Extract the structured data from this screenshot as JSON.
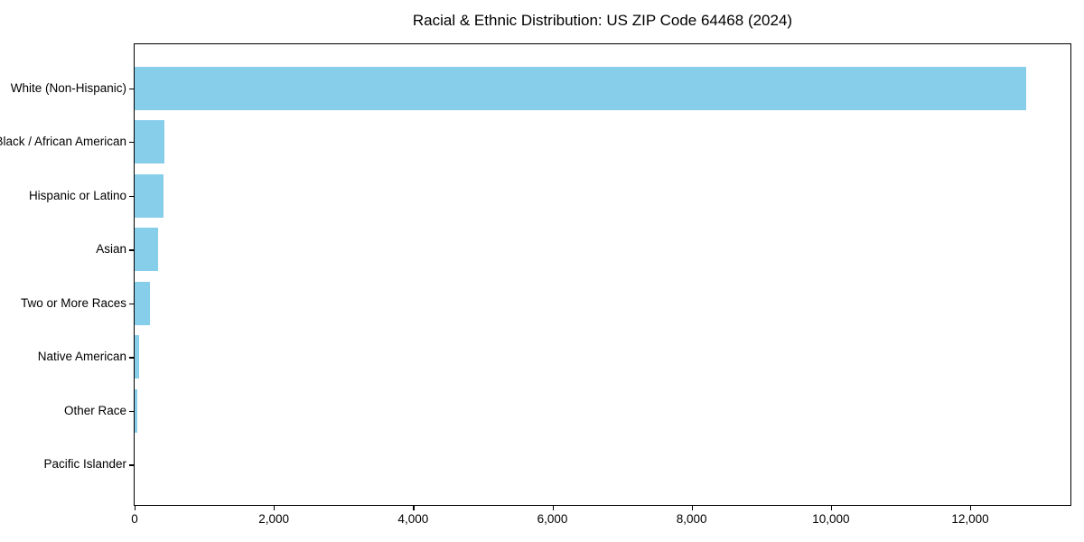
{
  "chart_data": {
    "type": "bar",
    "orientation": "horizontal",
    "title": "Racial & Ethnic Distribution: US ZIP Code 64468 (2024)",
    "categories": [
      "White (Non-Hispanic)",
      "Black / African American",
      "Hispanic or Latino",
      "Asian",
      "Two or More Races",
      "Native American",
      "Other Race",
      "Pacific Islander"
    ],
    "values": [
      12800,
      425,
      410,
      335,
      225,
      60,
      45,
      0
    ],
    "xlabel": "",
    "ylabel": "",
    "xlim": [
      0,
      13440
    ],
    "x_ticks": [
      0,
      2000,
      4000,
      6000,
      8000,
      10000,
      12000
    ],
    "x_tick_labels": [
      "0",
      "2,000",
      "4,000",
      "6,000",
      "8,000",
      "10,000",
      "12,000"
    ],
    "bar_color": "#87CEEB",
    "axis_color": "#000000",
    "text_color": "#000000",
    "background_color": "#ffffff",
    "grid": false,
    "legend": null
  }
}
